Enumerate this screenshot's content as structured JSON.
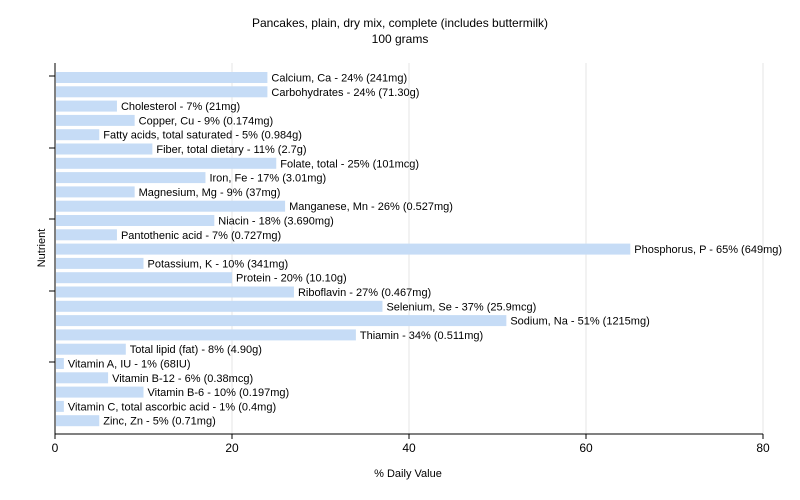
{
  "chart_data": {
    "type": "bar",
    "orientation": "horizontal",
    "title": "Pancakes, plain, dry mix, complete (includes buttermilk)",
    "subtitle": "100 grams",
    "xlabel": "% Daily Value",
    "ylabel": "Nutrient",
    "xlim": [
      0,
      80
    ],
    "xticks": [
      "0",
      "20",
      "40",
      "60",
      "80"
    ],
    "grid": true,
    "bar_color": "#c6dcf6",
    "categories": [
      "Calcium, Ca",
      "Carbohydrates",
      "Cholesterol",
      "Copper, Cu",
      "Fatty acids, total saturated",
      "Fiber, total dietary",
      "Folate, total",
      "Iron, Fe",
      "Magnesium, Mg",
      "Manganese, Mn",
      "Niacin",
      "Pantothenic acid",
      "Phosphorus, P",
      "Potassium, K",
      "Protein",
      "Riboflavin",
      "Selenium, Se",
      "Sodium, Na",
      "Thiamin",
      "Total lipid (fat)",
      "Vitamin A, IU",
      "Vitamin B-12",
      "Vitamin B-6",
      "Vitamin C, total ascorbic acid",
      "Zinc, Zn"
    ],
    "values": [
      24,
      24,
      7,
      9,
      5,
      11,
      25,
      17,
      9,
      26,
      18,
      7,
      65,
      10,
      20,
      27,
      37,
      51,
      34,
      8,
      1,
      6,
      10,
      1,
      5
    ],
    "labels": [
      "Calcium, Ca - 24% (241mg)",
      "Carbohydrates - 24% (71.30g)",
      "Cholesterol - 7% (21mg)",
      "Copper, Cu - 9% (0.174mg)",
      "Fatty acids, total saturated - 5% (0.984g)",
      "Fiber, total dietary - 11% (2.7g)",
      "Folate, total - 25% (101mcg)",
      "Iron, Fe - 17% (3.01mg)",
      "Magnesium, Mg - 9% (37mg)",
      "Manganese, Mn - 26% (0.527mg)",
      "Niacin - 18% (3.690mg)",
      "Pantothenic acid - 7% (0.727mg)",
      "Phosphorus, P - 65% (649mg)",
      "Potassium, K - 10% (341mg)",
      "Protein - 20% (10.10g)",
      "Riboflavin - 27% (0.467mg)",
      "Selenium, Se - 37% (25.9mcg)",
      "Sodium, Na - 51% (1215mg)",
      "Thiamin - 34% (0.511mg)",
      "Total lipid (fat) - 8% (4.90g)",
      "Vitamin A, IU - 1% (68IU)",
      "Vitamin B-12 - 6% (0.38mcg)",
      "Vitamin B-6 - 10% (0.197mg)",
      "Vitamin C, total ascorbic acid - 1% (0.4mg)",
      "Zinc, Zn - 5% (0.71mg)"
    ]
  }
}
